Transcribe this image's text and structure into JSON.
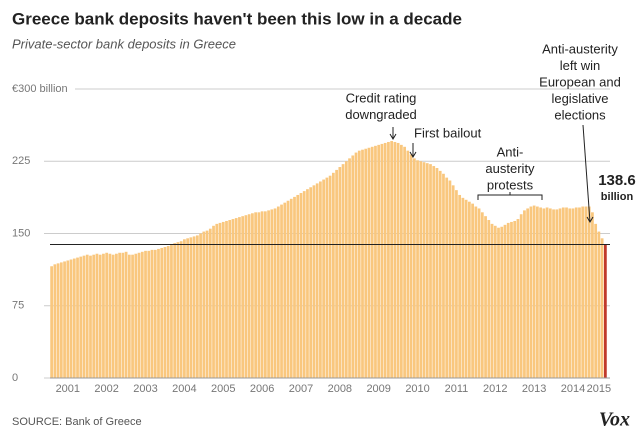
{
  "chart_data": {
    "type": "bar",
    "title": "Greece bank deposits haven't been this low in a decade",
    "subtitle": "Private-sector bank deposits in Greece",
    "source": "SOURCE: Bank of Greece",
    "logo": "Vox",
    "categories": [
      null,
      null,
      null,
      null,
      null,
      "2001",
      null,
      null,
      null,
      null,
      null,
      null,
      null,
      null,
      null,
      null,
      null,
      "2002",
      null,
      null,
      null,
      null,
      null,
      null,
      null,
      null,
      null,
      null,
      null,
      "2003",
      null,
      null,
      null,
      null,
      null,
      null,
      null,
      null,
      null,
      null,
      null,
      "2004",
      null,
      null,
      null,
      null,
      null,
      null,
      null,
      null,
      null,
      null,
      null,
      "2005",
      null,
      null,
      null,
      null,
      null,
      null,
      null,
      null,
      null,
      null,
      null,
      "2006",
      null,
      null,
      null,
      null,
      null,
      null,
      null,
      null,
      null,
      null,
      null,
      "2007",
      null,
      null,
      null,
      null,
      null,
      null,
      null,
      null,
      null,
      null,
      null,
      "2008",
      null,
      null,
      null,
      null,
      null,
      null,
      null,
      null,
      null,
      null,
      null,
      "2009",
      null,
      null,
      null,
      null,
      null,
      null,
      null,
      null,
      null,
      null,
      null,
      "2010",
      null,
      null,
      null,
      null,
      null,
      null,
      null,
      null,
      null,
      null,
      null,
      "2011",
      null,
      null,
      null,
      null,
      null,
      null,
      null,
      null,
      null,
      null,
      null,
      "2012",
      null,
      null,
      null,
      null,
      null,
      null,
      null,
      null,
      null,
      null,
      null,
      "2013",
      null,
      null,
      null,
      null,
      null,
      null,
      null,
      null,
      null,
      null,
      null,
      "2014",
      null,
      null,
      null,
      null,
      null,
      null,
      null,
      "2015",
      null,
      null
    ],
    "values": [
      116,
      118,
      119,
      120,
      121,
      122,
      123,
      124,
      125,
      126,
      127,
      128,
      127,
      128,
      129,
      128,
      129,
      130,
      129,
      128,
      129,
      130,
      130,
      131,
      128,
      128,
      129,
      130,
      131,
      132,
      132,
      133,
      133,
      134,
      135,
      136,
      137,
      138,
      140,
      141,
      142,
      144,
      145,
      146,
      147,
      148,
      150,
      152,
      153,
      155,
      158,
      160,
      161,
      162,
      163,
      164,
      165,
      166,
      167,
      168,
      169,
      170,
      171,
      172,
      172,
      173,
      173,
      174,
      175,
      176,
      178,
      180,
      182,
      184,
      186,
      188,
      190,
      192,
      194,
      196,
      198,
      200,
      202,
      204,
      206,
      208,
      210,
      213,
      216,
      219,
      222,
      225,
      228,
      231,
      234,
      236,
      237,
      238,
      239,
      240,
      241,
      242,
      243,
      244,
      245,
      246,
      245,
      244,
      242,
      240,
      236,
      232,
      228,
      226,
      225,
      224,
      223,
      222,
      220,
      218,
      215,
      212,
      208,
      205,
      200,
      195,
      190,
      187,
      185,
      183,
      181,
      178,
      176,
      172,
      168,
      164,
      160,
      158,
      156,
      157,
      159,
      161,
      162,
      163,
      165,
      170,
      174,
      176,
      178,
      179,
      178,
      177,
      176,
      177,
      176,
      175,
      175,
      176,
      177,
      177,
      176,
      176,
      177,
      177,
      178,
      178,
      178,
      172,
      160,
      152,
      145,
      138.6
    ],
    "color": "#f9c77e",
    "highlight_color": "#c0392b",
    "ylim": [
      0,
      300
    ],
    "yticks": [
      0,
      75,
      150,
      225,
      {
        "value": 300,
        "label": "€300 billion"
      }
    ],
    "grid": true,
    "unit_note": "billion",
    "annotations": [
      [
        "Credit rating",
        "downgraded"
      ],
      [
        "First bailout"
      ],
      [
        "Anti-",
        "austerity",
        "protests"
      ],
      [
        "Anti-austerity",
        "left win",
        "European and",
        "legislative",
        "elections"
      ]
    ]
  }
}
